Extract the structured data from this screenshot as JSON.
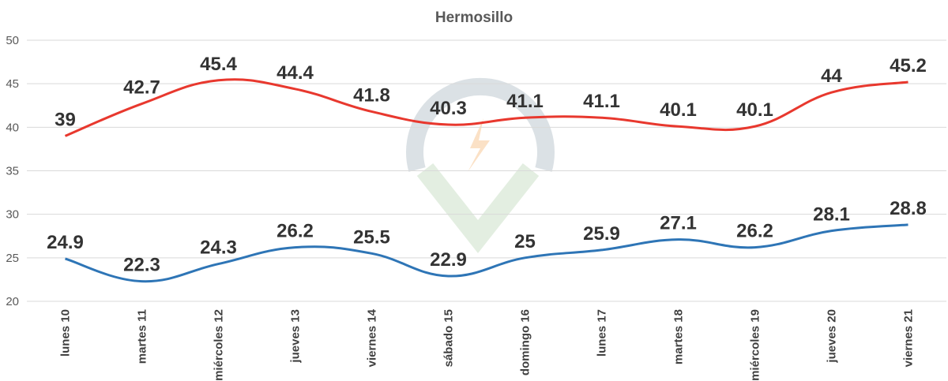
{
  "chart_data": {
    "type": "line",
    "title": "Hermosillo",
    "categories": [
      "lunes 10",
      "martes 11",
      "miércoles 12",
      "jueves 13",
      "viernes 14",
      "sábado 15",
      "domingo 16",
      "lunes 17",
      "martes 18",
      "miércoles 19",
      "jueves 20",
      "viernes 21"
    ],
    "series": [
      {
        "values": [
          39,
          42.7,
          45.4,
          44.4,
          41.8,
          40.3,
          41.1,
          41.1,
          40.1,
          40.1,
          44,
          45.2
        ],
        "color": "#e8382e"
      },
      {
        "values": [
          24.9,
          22.3,
          24.3,
          26.2,
          25.5,
          22.9,
          25,
          25.9,
          27.1,
          26.2,
          28.1,
          28.8
        ],
        "color": "#2e75b6"
      }
    ],
    "ylim": [
      20,
      50
    ],
    "yticks": [
      20,
      25,
      30,
      35,
      40,
      45,
      50
    ],
    "grid": true,
    "legend": "none",
    "xlabel": "",
    "ylabel": ""
  }
}
